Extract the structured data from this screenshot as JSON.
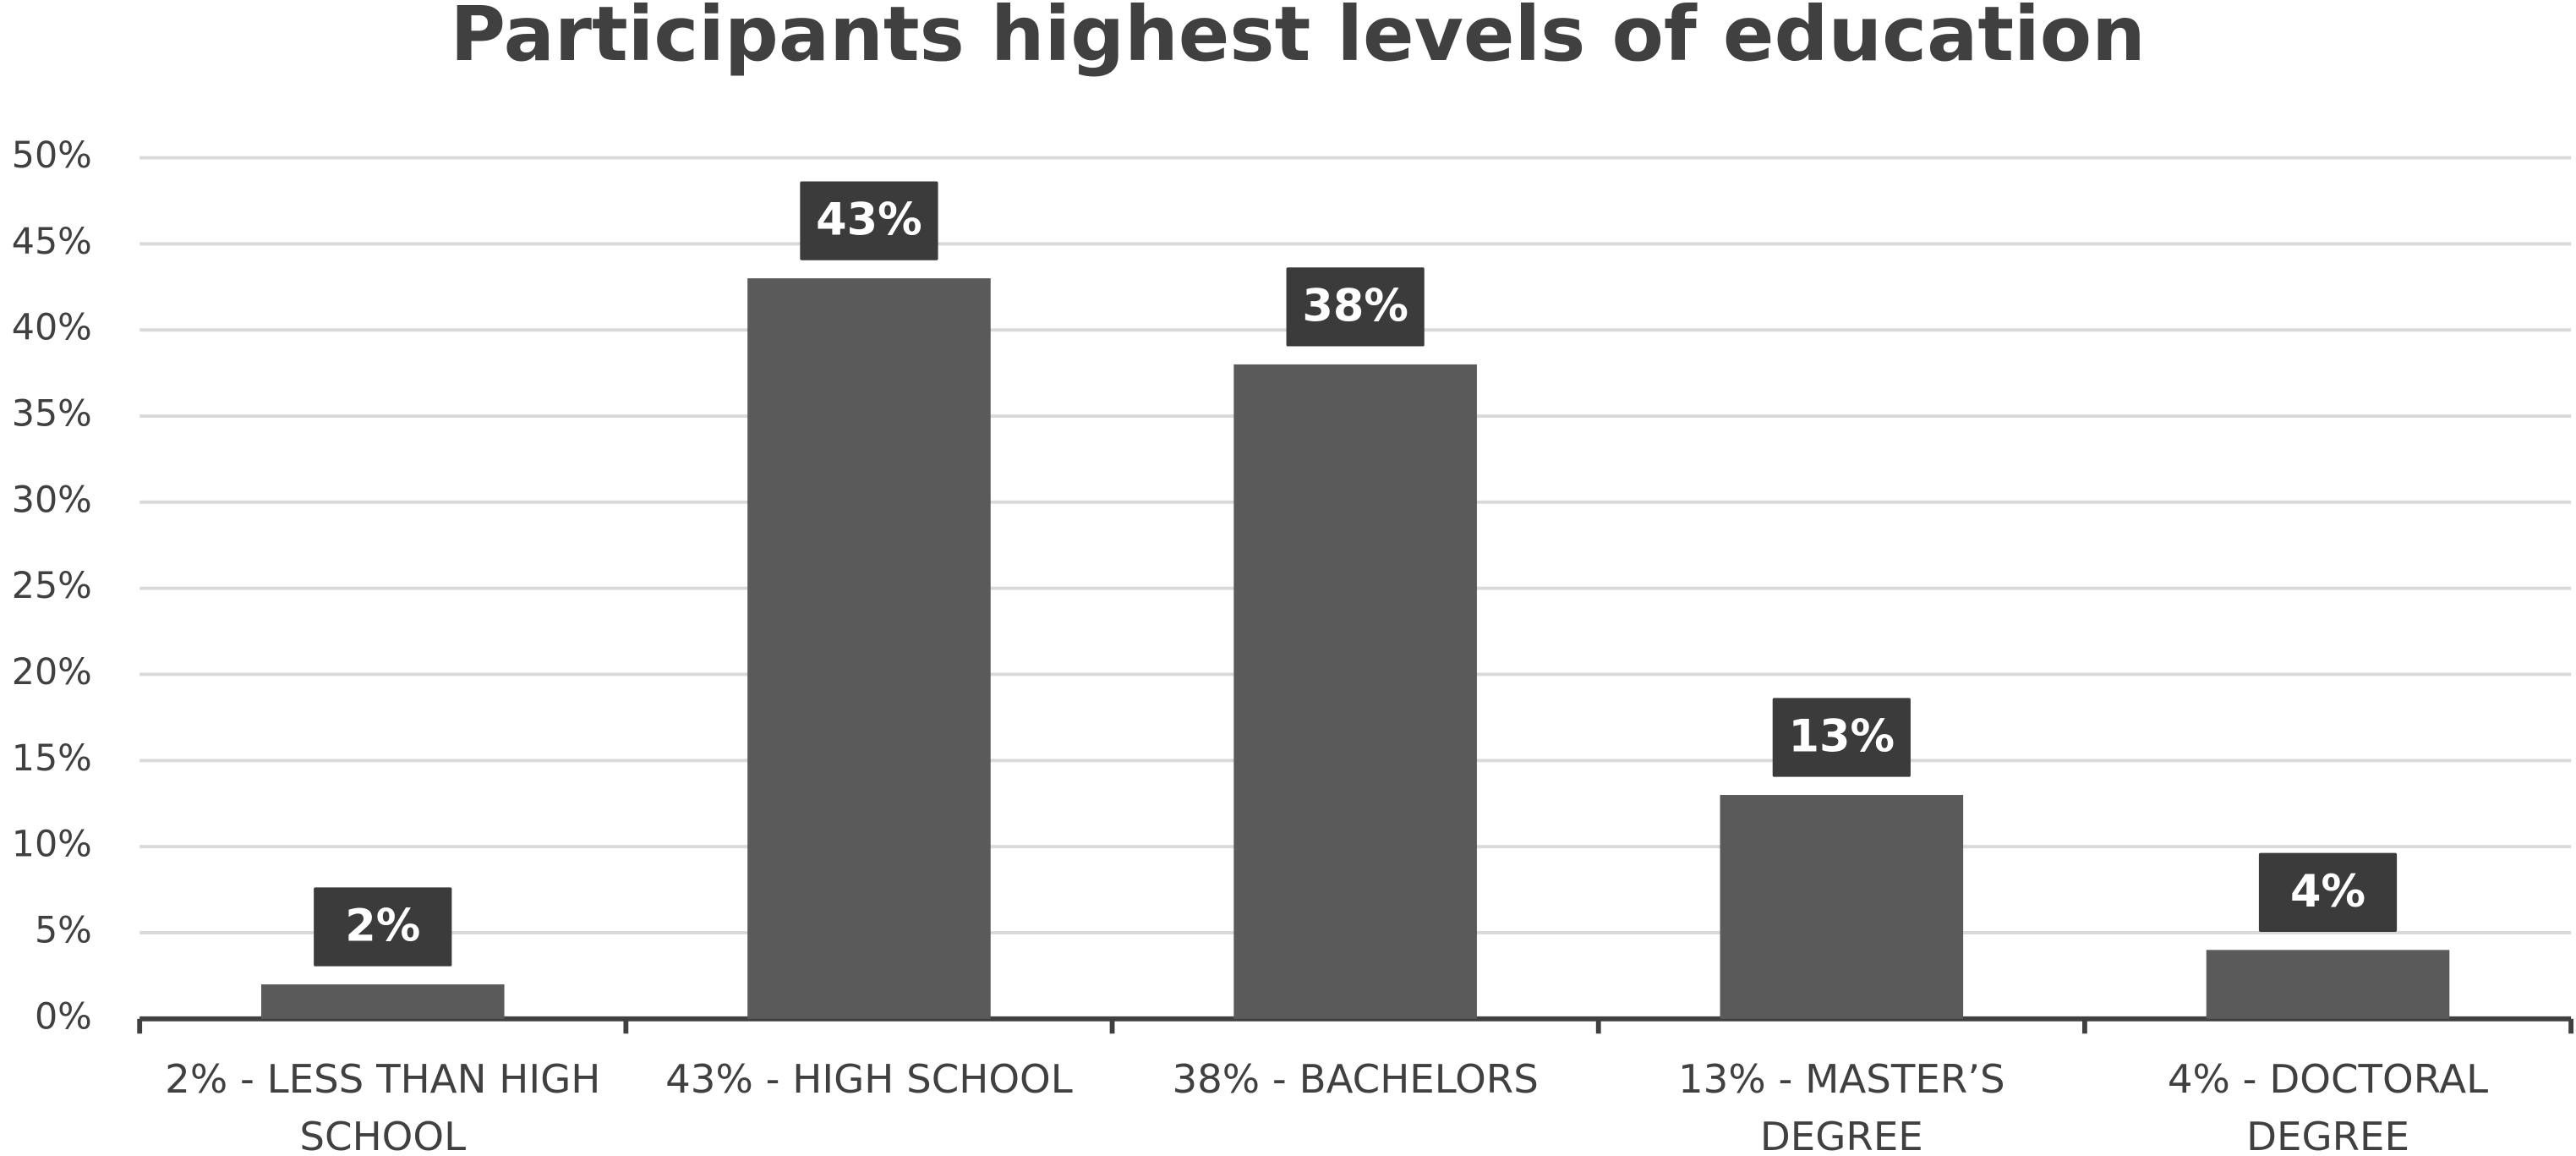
{
  "chart_data": {
    "type": "bar",
    "title": "Participants highest levels of education",
    "categories": [
      "2% - LESS THAN HIGH SCHOOL",
      "43% - HIGH SCHOOL",
      "38% - BACHELORS",
      "13% - MASTER’S DEGREE",
      "4% - DOCTORAL DEGREE"
    ],
    "values": [
      2,
      43,
      38,
      13,
      4
    ],
    "value_labels": [
      "2%",
      "43%",
      "38%",
      "13%",
      "4%"
    ],
    "color": "#5a5a5a",
    "ylim": [
      0,
      50
    ],
    "yticks": [
      {
        "value": 0,
        "label": "0%"
      },
      {
        "value": 5,
        "label": "5%"
      },
      {
        "value": 10,
        "label": "10%"
      },
      {
        "value": 15,
        "label": "15%"
      },
      {
        "value": 20,
        "label": "20%"
      },
      {
        "value": 25,
        "label": "25%"
      },
      {
        "value": 30,
        "label": "30%"
      },
      {
        "value": 35,
        "label": "35%"
      },
      {
        "value": 40,
        "label": "40%"
      },
      {
        "value": 45,
        "label": "45%"
      },
      {
        "value": 50,
        "label": "50%"
      }
    ],
    "grid": true
  }
}
